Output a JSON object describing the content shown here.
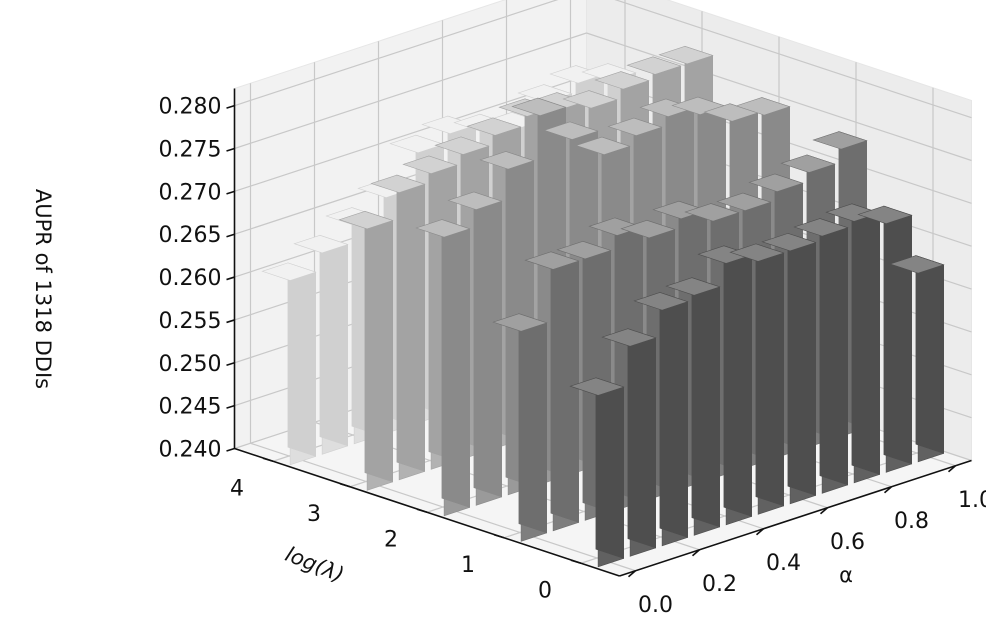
{
  "chart_data": {
    "type": "bar3d",
    "zlabel": "AUPR of 1318 DDIs",
    "xlabel": "α",
    "ylabel": "log(λ)",
    "x_ticks": [
      "0.0",
      "0.2",
      "0.4",
      "0.6",
      "0.8",
      "1.0"
    ],
    "y_ticks": [
      "0",
      "1",
      "2",
      "3",
      "4"
    ],
    "z_ticks": [
      "0.240",
      "0.245",
      "0.250",
      "0.255",
      "0.260",
      "0.265",
      "0.270",
      "0.275",
      "0.280"
    ],
    "zlim": [
      0.24,
      0.282
    ],
    "alpha": [
      0.0,
      0.1,
      0.2,
      0.3,
      0.4,
      0.5,
      0.6,
      0.7,
      0.8,
      0.9,
      1.0
    ],
    "log_lambda": [
      0,
      1,
      2,
      3,
      4
    ],
    "series": [
      {
        "log_lambda": 4,
        "values": [
          0.2615,
          0.2635,
          0.2655,
          0.2675,
          0.2715,
          0.2725,
          0.2715,
          0.2705,
          0.2725,
          0.2735,
          0.2725
        ]
      },
      {
        "log_lambda": 3,
        "values": [
          0.2705,
          0.2735,
          0.2745,
          0.2755,
          0.2765,
          0.2775,
          0.277,
          0.276,
          0.277,
          0.2775,
          0.2775
        ]
      },
      {
        "log_lambda": 2,
        "values": [
          0.2725,
          0.2745,
          0.278,
          0.283,
          0.279,
          0.276,
          0.277,
          0.278,
          0.277,
          0.275,
          0.2745
        ]
      },
      {
        "log_lambda": 1,
        "values": [
          0.2645,
          0.2705,
          0.2705,
          0.272,
          0.2705,
          0.2715,
          0.27,
          0.27,
          0.271,
          0.272,
          0.2735
        ]
      },
      {
        "log_lambda": 0,
        "values": [
          0.26,
          0.2645,
          0.2675,
          0.268,
          0.2705,
          0.2695,
          0.2695,
          0.27,
          0.2705,
          0.269,
          0.262
        ]
      }
    ]
  }
}
